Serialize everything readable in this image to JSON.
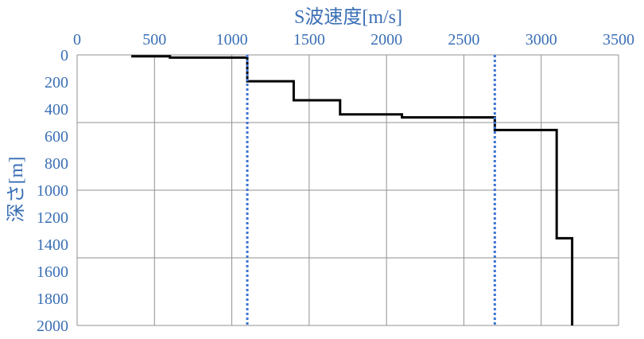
{
  "chart_data": {
    "type": "line",
    "xlabel": "S波速度[m/s]",
    "ylabel": "深さ[m]",
    "xlim": [
      0,
      3500
    ],
    "ylim": [
      0,
      2000
    ],
    "y_inverted": true,
    "x_axis_position": "top",
    "x_ticks": [
      0,
      500,
      1000,
      1500,
      2000,
      2500,
      3000,
      3500
    ],
    "y_ticks": [
      0,
      200,
      400,
      600,
      800,
      1000,
      1200,
      1400,
      1600,
      1800,
      2000
    ],
    "grid": "major gridlines at x 500-step and y 500-step",
    "grid_x": [
      500,
      1000,
      1500,
      2000,
      2500,
      3000,
      3500
    ],
    "grid_y": [
      500,
      1000,
      1500
    ],
    "series": [
      {
        "style": "solid",
        "color": "#000000",
        "points": [
          [
            350,
            10
          ],
          [
            600,
            10
          ],
          [
            600,
            20
          ],
          [
            1100,
            20
          ],
          [
            1100,
            195
          ],
          [
            1400,
            195
          ],
          [
            1400,
            335
          ],
          [
            1700,
            335
          ],
          [
            1700,
            440
          ],
          [
            2100,
            440
          ],
          [
            2100,
            462
          ],
          [
            2700,
            462
          ],
          [
            2700,
            555
          ],
          [
            3100,
            555
          ],
          [
            3100,
            1355
          ],
          [
            3200,
            1355
          ],
          [
            3200,
            2000
          ]
        ]
      },
      {
        "style": "dotted",
        "color": "#3b74d4",
        "points": [
          [
            1100,
            0
          ],
          [
            1100,
            2000
          ]
        ]
      },
      {
        "style": "dotted",
        "color": "#3b74d4",
        "points": [
          [
            2700,
            0
          ],
          [
            2700,
            2000
          ]
        ]
      }
    ]
  },
  "colors": {
    "axis_text": "#3a6fb5",
    "grid": "#909090",
    "frame": "#909090"
  }
}
